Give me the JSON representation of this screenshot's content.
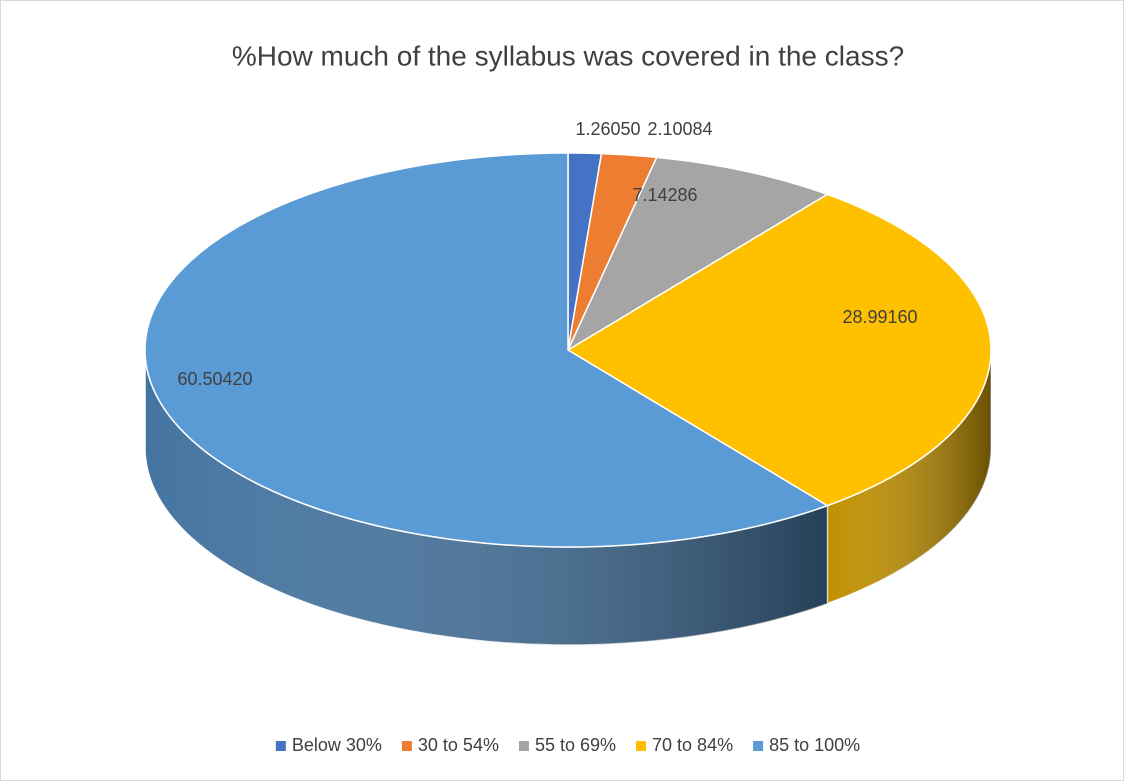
{
  "chart_data": {
    "type": "pie3d",
    "title": "%How much of the syllabus was covered in the class?",
    "categories": [
      "Below 30%",
      "30 to 54%",
      "55 to 69%",
      "70 to 84%",
      "85 to 100%"
    ],
    "values": [
      1.2605,
      2.10084,
      7.14286,
      28.9916,
      60.5042
    ],
    "value_labels": [
      "1.26050",
      "2.10084",
      "7.14286",
      "28.99160",
      "60.50420"
    ],
    "colors": [
      "#4472c4",
      "#ed7d31",
      "#a5a5a5",
      "#ffc000",
      "#5b9bd5"
    ],
    "legend": "bottom"
  }
}
